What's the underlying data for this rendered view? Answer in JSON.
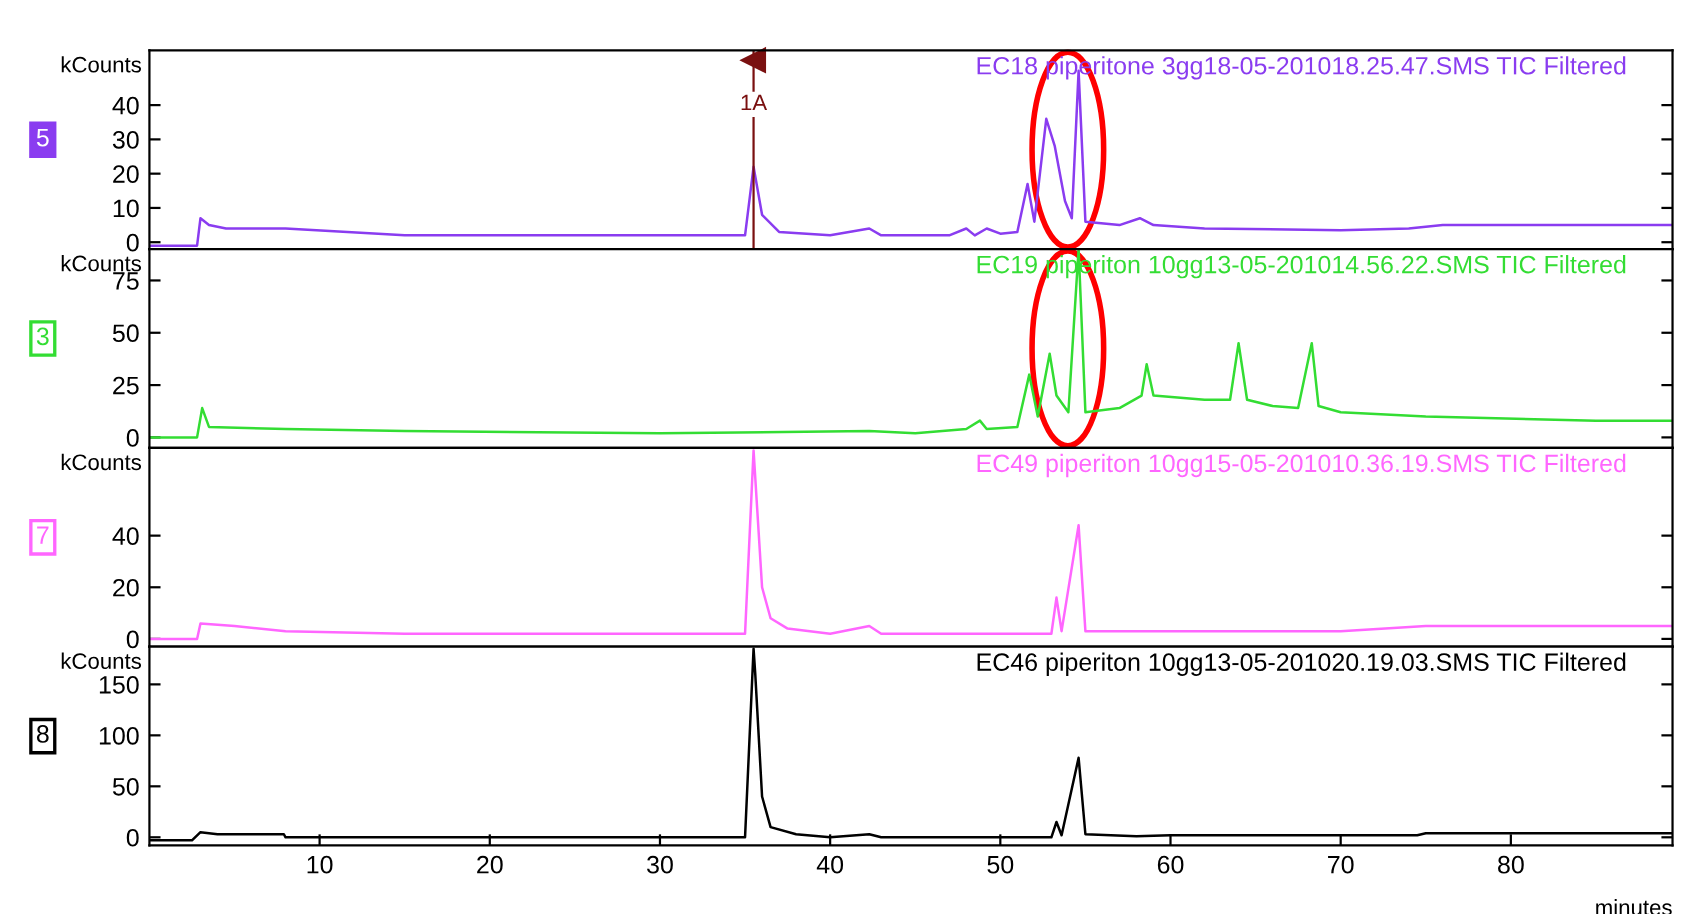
{
  "chart_data": [
    {
      "type": "line",
      "title": "EC18 piperitone 3gg18-05-201018.25.47.SMS TIC Filtered",
      "ylabel": "kCounts",
      "annotations": [
        "5"
      ],
      "ref_lines": [
        {
          "axis": "x",
          "value": 35.5,
          "label": "1A",
          "color": "#7a1010"
        }
      ],
      "xlim": [
        0,
        89.5
      ],
      "ylim": [
        -2,
        56
      ],
      "yticks": [
        0,
        10,
        20,
        30,
        40
      ],
      "tick_labels": "y",
      "legend": false,
      "grid": false,
      "series": [
        {
          "color": "#8a3cf0",
          "x": [
            0,
            2.8,
            3.0,
            3.5,
            4.5,
            8,
            15,
            25,
            35,
            35.5,
            36,
            37,
            40,
            42.3,
            43,
            47,
            48,
            48.5,
            49.2,
            50,
            51,
            51.6,
            52,
            52.7,
            53.2,
            53.8,
            54.2,
            54.6,
            55,
            57,
            58.2,
            59,
            62,
            70,
            74,
            76,
            89.5
          ],
          "values": [
            -1,
            -1,
            7,
            5,
            4,
            4,
            2,
            2,
            2,
            22,
            8,
            3,
            2,
            4,
            2,
            2,
            4,
            2,
            4,
            2.5,
            3,
            17,
            6,
            36,
            28,
            12,
            7,
            50,
            6,
            5,
            7,
            5,
            4,
            3.5,
            4,
            5,
            5
          ]
        }
      ]
    },
    {
      "type": "line",
      "title": "EC19 piperiton 10gg13-05-201014.56.22.SMS TIC Filtered",
      "ylabel": "kCounts",
      "annotations": [
        "3"
      ],
      "xlim": [
        0,
        89.5
      ],
      "ylim": [
        -5,
        90
      ],
      "yticks": [
        0,
        25,
        50,
        75
      ],
      "tick_labels": "y",
      "legend": false,
      "grid": false,
      "series": [
        {
          "color": "#33dd33",
          "x": [
            0,
            2.8,
            3.1,
            3.5,
            8,
            15,
            30,
            42.3,
            45,
            48,
            48.8,
            49.2,
            51,
            51.7,
            52.2,
            52.9,
            53.3,
            54,
            54.6,
            55,
            57,
            58.3,
            58.6,
            59,
            62,
            63.5,
            64,
            64.5,
            66,
            67.5,
            68.3,
            68.7,
            70,
            75,
            85,
            89.5
          ],
          "values": [
            0,
            0,
            14,
            5,
            4,
            3,
            2,
            3,
            2,
            4,
            8,
            4,
            5,
            30,
            10,
            40,
            20,
            12,
            90,
            12,
            14,
            20,
            35,
            20,
            18,
            18,
            45,
            18,
            15,
            14,
            45,
            15,
            12,
            10,
            8,
            8
          ]
        }
      ]
    },
    {
      "type": "line",
      "title": "EC49 piperiton 10gg15-05-201010.36.19.SMS TIC Filtered",
      "ylabel": "kCounts",
      "annotations": [
        "7"
      ],
      "xlim": [
        0,
        89.5
      ],
      "ylim": [
        -3,
        74
      ],
      "yticks": [
        0,
        20,
        40
      ],
      "tick_labels": "y",
      "legend": false,
      "grid": false,
      "series": [
        {
          "color": "#ff66ff",
          "x": [
            0,
            2.8,
            3.0,
            5,
            8,
            15,
            35,
            35.5,
            36,
            36.5,
            37.5,
            40,
            42.3,
            43,
            53,
            53.3,
            53.6,
            54.6,
            55,
            70,
            75,
            89.5
          ],
          "values": [
            0,
            0,
            6,
            5,
            3,
            2,
            2,
            73,
            20,
            8,
            4,
            2,
            5,
            2,
            2,
            16,
            3,
            44,
            3,
            3,
            5,
            5
          ]
        }
      ]
    },
    {
      "type": "line",
      "title": "EC46 piperiton 10gg13-05-201020.19.03.SMS TIC Filtered",
      "ylabel": "kCounts",
      "xlabel": "minutes",
      "annotations": [
        "8"
      ],
      "xlim": [
        0,
        89.5
      ],
      "ylim": [
        -8,
        187
      ],
      "yticks": [
        0,
        50,
        100,
        150
      ],
      "xticks": [
        10,
        20,
        30,
        40,
        50,
        60,
        70,
        80
      ],
      "legend": false,
      "grid": false,
      "series": [
        {
          "color": "#000000",
          "x": [
            0,
            2.5,
            3,
            4,
            7.9,
            8,
            35,
            35.5,
            35.6,
            36,
            36.5,
            38,
            40,
            42.3,
            43,
            53,
            53.3,
            53.6,
            54.6,
            55,
            58,
            60,
            74.5,
            75,
            89.5
          ],
          "values": [
            -3,
            -3,
            5,
            3,
            3,
            0,
            0,
            185,
            160,
            40,
            10,
            3,
            0,
            3,
            0,
            0,
            15,
            2,
            78,
            3,
            1,
            2,
            2,
            4,
            4
          ]
        }
      ]
    }
  ]
}
